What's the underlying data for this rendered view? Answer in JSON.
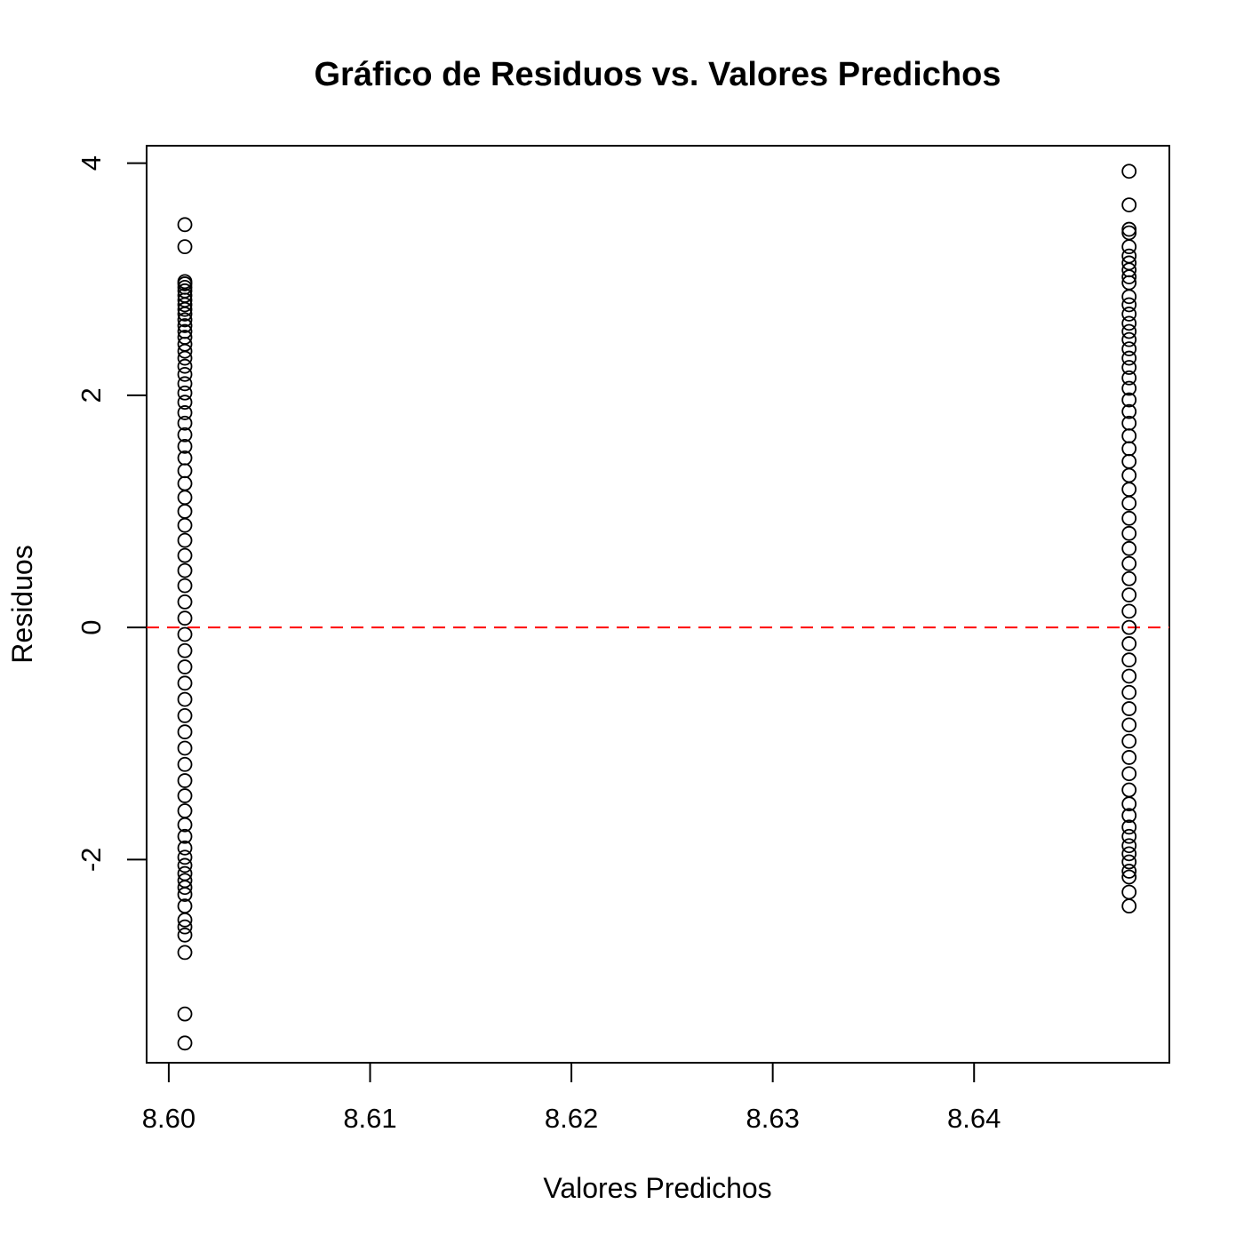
{
  "chart_data": {
    "type": "scatter",
    "title": "Gráfico de Residuos vs. Valores Predichos",
    "xlabel": "Valores Predichos",
    "ylabel": "Residuos",
    "xlim": [
      8.5989,
      8.6497
    ],
    "ylim": [
      -3.75,
      4.15
    ],
    "xticks": [
      8.6,
      8.61,
      8.62,
      8.63,
      8.64
    ],
    "xtick_labels": [
      "8.60",
      "8.61",
      "8.62",
      "8.63",
      "8.64"
    ],
    "yticks": [
      -2,
      0,
      2,
      4
    ],
    "ytick_labels": [
      "-2",
      "0",
      "2",
      "4"
    ],
    "grid": false,
    "reference_line": {
      "y": 0,
      "color": "#ff0000",
      "style": "dashed"
    },
    "series": [
      {
        "x": 8.6008,
        "y": [
          3.47,
          3.28,
          2.98,
          2.96,
          2.93,
          2.9,
          2.86,
          2.82,
          2.78,
          2.74,
          2.7,
          2.65,
          2.6,
          2.55,
          2.5,
          2.44,
          2.38,
          2.32,
          2.25,
          2.18,
          2.1,
          2.02,
          1.94,
          1.85,
          1.76,
          1.66,
          1.56,
          1.46,
          1.35,
          1.24,
          1.12,
          1.0,
          0.88,
          0.75,
          0.62,
          0.49,
          0.36,
          0.22,
          0.08,
          -0.06,
          -0.2,
          -0.34,
          -0.48,
          -0.62,
          -0.76,
          -0.9,
          -1.04,
          -1.18,
          -1.32,
          -1.45,
          -1.58,
          -1.7,
          -1.8,
          -1.9,
          -1.98,
          -2.05,
          -2.12,
          -2.18,
          -2.24,
          -2.3,
          -2.4,
          -2.52,
          -2.58,
          -2.65,
          -2.8,
          -3.33,
          -3.58
        ]
      },
      {
        "x": 8.6477,
        "y": [
          3.93,
          3.64,
          3.43,
          3.4,
          3.28,
          3.2,
          3.14,
          3.08,
          3.02,
          2.97,
          2.85,
          2.78,
          2.7,
          2.62,
          2.55,
          2.48,
          2.4,
          2.32,
          2.24,
          2.15,
          2.06,
          1.96,
          1.86,
          1.76,
          1.65,
          1.54,
          1.43,
          1.31,
          1.19,
          1.07,
          0.94,
          0.81,
          0.68,
          0.55,
          0.42,
          0.28,
          0.14,
          0.0,
          -0.14,
          -0.28,
          -0.42,
          -0.56,
          -0.7,
          -0.84,
          -0.98,
          -1.12,
          -1.26,
          -1.4,
          -1.52,
          -1.62,
          -1.72,
          -1.8,
          -1.88,
          -1.95,
          -2.02,
          -2.1,
          -2.15,
          -2.28,
          -2.4
        ]
      }
    ]
  }
}
